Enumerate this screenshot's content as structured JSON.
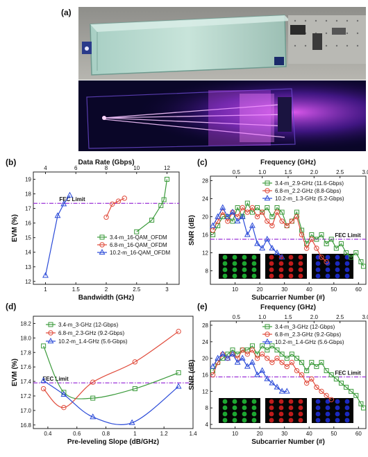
{
  "figure": {
    "panel_labels": [
      "(a)",
      "(b)",
      "(c)",
      "(d)",
      "(e)"
    ]
  },
  "photos": {
    "top_caption": "",
    "bottom_caption": ""
  },
  "chart_data": [
    {
      "id": "b",
      "type": "line",
      "xlabel": "Bandwidth (GHz)",
      "ylabel": "EVM (%)",
      "top_xlabel": "Data Rate (Gbps)",
      "xlim": [
        0.8,
        3.2
      ],
      "ylim": [
        11.8,
        19.5
      ],
      "xticks": [
        1.0,
        1.5,
        2.0,
        2.5,
        3.0
      ],
      "yticks": [
        12,
        13,
        14,
        15,
        16,
        17,
        18,
        19
      ],
      "top_xticks": [
        4,
        6,
        8,
        10,
        12
      ],
      "threshold": {
        "label": "FEC Limit",
        "value": 17.35
      },
      "legend_position": "bottom-right",
      "series": [
        {
          "name": "3.4-m_16-QAM_OFDM",
          "color": "#3a9a3a",
          "marker": "square",
          "x": [
            2.5,
            2.75,
            2.9,
            2.95,
            3.0
          ],
          "y": [
            15.4,
            16.2,
            17.2,
            17.6,
            19.0
          ]
        },
        {
          "name": "6.8-m_16-QAM_OFDM",
          "color": "#e04a3a",
          "marker": "circle",
          "x": [
            2.0,
            2.1,
            2.2,
            2.3
          ],
          "y": [
            16.4,
            17.3,
            17.5,
            17.7
          ]
        },
        {
          "name": "10.2-m_16-QAM_OFDM",
          "color": "#2a4ad8",
          "marker": "triangle",
          "x": [
            1.0,
            1.2,
            1.3,
            1.4
          ],
          "y": [
            12.4,
            16.5,
            17.3,
            17.9
          ]
        }
      ]
    },
    {
      "id": "c",
      "type": "line",
      "xlabel": "Subcarrier Number (#)",
      "ylabel": "SNR (dB)",
      "top_xlabel": "Frequency (GHz)",
      "xlim": [
        0,
        63
      ],
      "ylim": [
        5,
        29
      ],
      "xticks": [
        10,
        20,
        30,
        40,
        50,
        60
      ],
      "yticks": [
        8,
        12,
        16,
        20,
        24,
        28
      ],
      "top_xticks": [
        0.5,
        1.0,
        1.5,
        2.0,
        2.5,
        3.0
      ],
      "threshold": {
        "label": "FEC Limit",
        "value": 15
      },
      "legend_position": "top-right",
      "series": [
        {
          "name": "3.4-m_2.9-GHz (11.6-Gbps)",
          "color": "#3a9a3a",
          "marker": "square",
          "x": [
            1,
            3,
            5,
            7,
            9,
            11,
            13,
            15,
            17,
            19,
            21,
            23,
            25,
            27,
            29,
            31,
            33,
            35,
            37,
            39,
            41,
            43,
            45,
            47,
            49,
            51,
            53,
            55,
            57,
            59,
            61,
            62
          ],
          "y": [
            16,
            18,
            20,
            20,
            19,
            22,
            20,
            23,
            21,
            22,
            21,
            22,
            20,
            22,
            21,
            18,
            19,
            21,
            17,
            14,
            16,
            15,
            16,
            14,
            15,
            13,
            14,
            12,
            11,
            12,
            10,
            9
          ]
        },
        {
          "name": "6.8-m_2.2-GHz (8.8-Gbps)",
          "color": "#e04a3a",
          "marker": "circle",
          "x": [
            1,
            3,
            5,
            7,
            9,
            11,
            13,
            15,
            17,
            19,
            21,
            23,
            25,
            27,
            29,
            31,
            33,
            35,
            37,
            39,
            41,
            43,
            45,
            47
          ],
          "y": [
            17,
            19,
            21,
            19,
            21,
            20,
            22,
            21,
            22,
            20,
            21,
            19,
            18,
            21,
            19,
            18,
            19,
            20,
            16,
            13,
            15,
            13,
            11,
            10
          ]
        },
        {
          "name": "10.2-m_1.3-GHz (5.2-Gbps)",
          "color": "#2a4ad8",
          "marker": "triangle",
          "x": [
            1,
            3,
            5,
            7,
            9,
            11,
            13,
            15,
            17,
            19,
            21,
            23,
            25,
            27,
            29
          ],
          "y": [
            18,
            20,
            22,
            20,
            21,
            19,
            20,
            16,
            18,
            14,
            13,
            15,
            13,
            12,
            11
          ]
        }
      ]
    },
    {
      "id": "d",
      "type": "line",
      "xlabel": "Pre-leveling Slope (dB/GHz)",
      "ylabel": "EVM (%)",
      "xlim": [
        0.3,
        1.4
      ],
      "ylim": [
        16.75,
        18.3
      ],
      "xticks": [
        0.4,
        0.6,
        0.8,
        1.0,
        1.2,
        1.4
      ],
      "yticks": [
        16.8,
        17.0,
        17.2,
        17.4,
        17.6,
        17.8,
        18.0,
        18.2
      ],
      "threshold": {
        "label": "FEC Limit",
        "value": 17.38
      },
      "legend_position": "top-left",
      "series": [
        {
          "name": "3.4-m_3-GHz (12-Gbps)",
          "color": "#3a9a3a",
          "marker": "square",
          "x": [
            0.37,
            0.51,
            0.71,
            1.0,
            1.3
          ],
          "y": [
            17.89,
            17.25,
            17.17,
            17.3,
            17.52
          ]
        },
        {
          "name": "6.8-m_2.3-GHz (9.2-Gbps)",
          "color": "#e04a3a",
          "marker": "circle",
          "x": [
            0.37,
            0.51,
            0.71,
            1.0,
            1.3
          ],
          "y": [
            17.3,
            17.04,
            17.39,
            17.67,
            18.09
          ]
        },
        {
          "name": "10.2-m_1.4-GHz (5.6-Gbps)",
          "color": "#2a4ad8",
          "marker": "triangle",
          "x": [
            0.37,
            0.51,
            0.71,
            0.98,
            1.3
          ],
          "y": [
            17.41,
            17.22,
            16.91,
            16.83,
            17.33
          ]
        }
      ]
    },
    {
      "id": "e",
      "type": "line",
      "xlabel": "Subcarrier Number (#)",
      "ylabel": "SNR (dB)",
      "top_xlabel": "Frequency (GHz)",
      "xlim": [
        0,
        63
      ],
      "ylim": [
        3,
        29
      ],
      "xticks": [
        10,
        20,
        30,
        40,
        50,
        60
      ],
      "yticks": [
        4,
        8,
        12,
        16,
        20,
        24,
        28
      ],
      "top_xticks": [
        0.5,
        1.0,
        1.5,
        2.0,
        2.5,
        3.0
      ],
      "threshold": {
        "label": "FEC Limit",
        "value": 15.5
      },
      "legend_position": "top-right",
      "series": [
        {
          "name": "3.4-m_3-GHz (12-Gbps)",
          "color": "#3a9a3a",
          "marker": "square",
          "x": [
            1,
            3,
            5,
            7,
            9,
            11,
            13,
            15,
            17,
            19,
            21,
            23,
            25,
            27,
            29,
            31,
            33,
            35,
            37,
            39,
            41,
            43,
            45,
            47,
            49,
            51,
            53,
            55,
            57,
            59,
            61,
            62
          ],
          "y": [
            17,
            19,
            20,
            21,
            22,
            21,
            22,
            22,
            23,
            21,
            23,
            22,
            23,
            22,
            21,
            20,
            21,
            20,
            19,
            17,
            19,
            18,
            19,
            17,
            16,
            15,
            14,
            13,
            12,
            11,
            9,
            8
          ]
        },
        {
          "name": "6.8-m_2.3-GHz (9.2-Gbps)",
          "color": "#e04a3a",
          "marker": "circle",
          "x": [
            1,
            3,
            5,
            7,
            9,
            11,
            13,
            15,
            17,
            19,
            21,
            23,
            25,
            27,
            29,
            31,
            33,
            35,
            37,
            39,
            41,
            43,
            45,
            47,
            49
          ],
          "y": [
            16,
            19,
            21,
            20,
            21,
            20,
            22,
            21,
            22,
            20,
            21,
            20,
            19,
            20,
            19,
            18,
            19,
            17,
            16,
            14,
            15,
            13,
            12,
            11,
            10
          ]
        },
        {
          "name": "10.2-m_1.4-GHz (5.6-Gbps)",
          "color": "#2a4ad8",
          "marker": "triangle",
          "x": [
            1,
            3,
            5,
            7,
            9,
            11,
            13,
            15,
            17,
            19,
            21,
            23,
            25,
            27,
            29,
            31
          ],
          "y": [
            18,
            20,
            21,
            20,
            21,
            19,
            20,
            18,
            19,
            16,
            17,
            15,
            14,
            13,
            12,
            12
          ]
        }
      ]
    }
  ]
}
